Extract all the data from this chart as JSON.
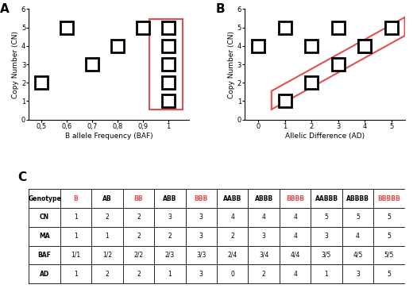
{
  "panel_A_points": {
    "baf": [
      0.5,
      0.6,
      0.7,
      0.8,
      0.9,
      1.0,
      1.0,
      1.0,
      1.0,
      1.0
    ],
    "cn": [
      2,
      5,
      3,
      4,
      5,
      1,
      2,
      3,
      4,
      5
    ]
  },
  "panel_B_points": {
    "ad": [
      0,
      1,
      1,
      2,
      2,
      3,
      3,
      4,
      4,
      5
    ],
    "cn": [
      4,
      1,
      5,
      2,
      4,
      3,
      5,
      4,
      4,
      5
    ]
  },
  "table_headers": [
    "Genotype",
    "B",
    "AB",
    "BB",
    "ABB",
    "BBB",
    "AABB",
    "ABBB",
    "BBBB",
    "AABBB",
    "ABBBB",
    "BBBBB"
  ],
  "table_red_cols": [
    1,
    3,
    5,
    8,
    11
  ],
  "table_rows": {
    "CN": [
      "1",
      "2",
      "2",
      "3",
      "3",
      "4",
      "4",
      "4",
      "5",
      "5",
      "5"
    ],
    "MA": [
      "1",
      "1",
      "2",
      "2",
      "3",
      "2",
      "3",
      "4",
      "3",
      "4",
      "5"
    ],
    "BAF": [
      "1/1",
      "1/2",
      "2/2",
      "2/3",
      "3/3",
      "2/4",
      "3/4",
      "4/4",
      "3/5",
      "4/5",
      "5/5"
    ],
    "AD": [
      "1",
      "2",
      "2",
      "1",
      "3",
      "0",
      "2",
      "4",
      "1",
      "3",
      "5"
    ]
  },
  "marker_size": 11,
  "marker_style": "s",
  "marker_facecolor": "white",
  "marker_edgecolor": "black",
  "marker_edgewidth": 2.0,
  "rect_color": "#e05050",
  "background": "white"
}
